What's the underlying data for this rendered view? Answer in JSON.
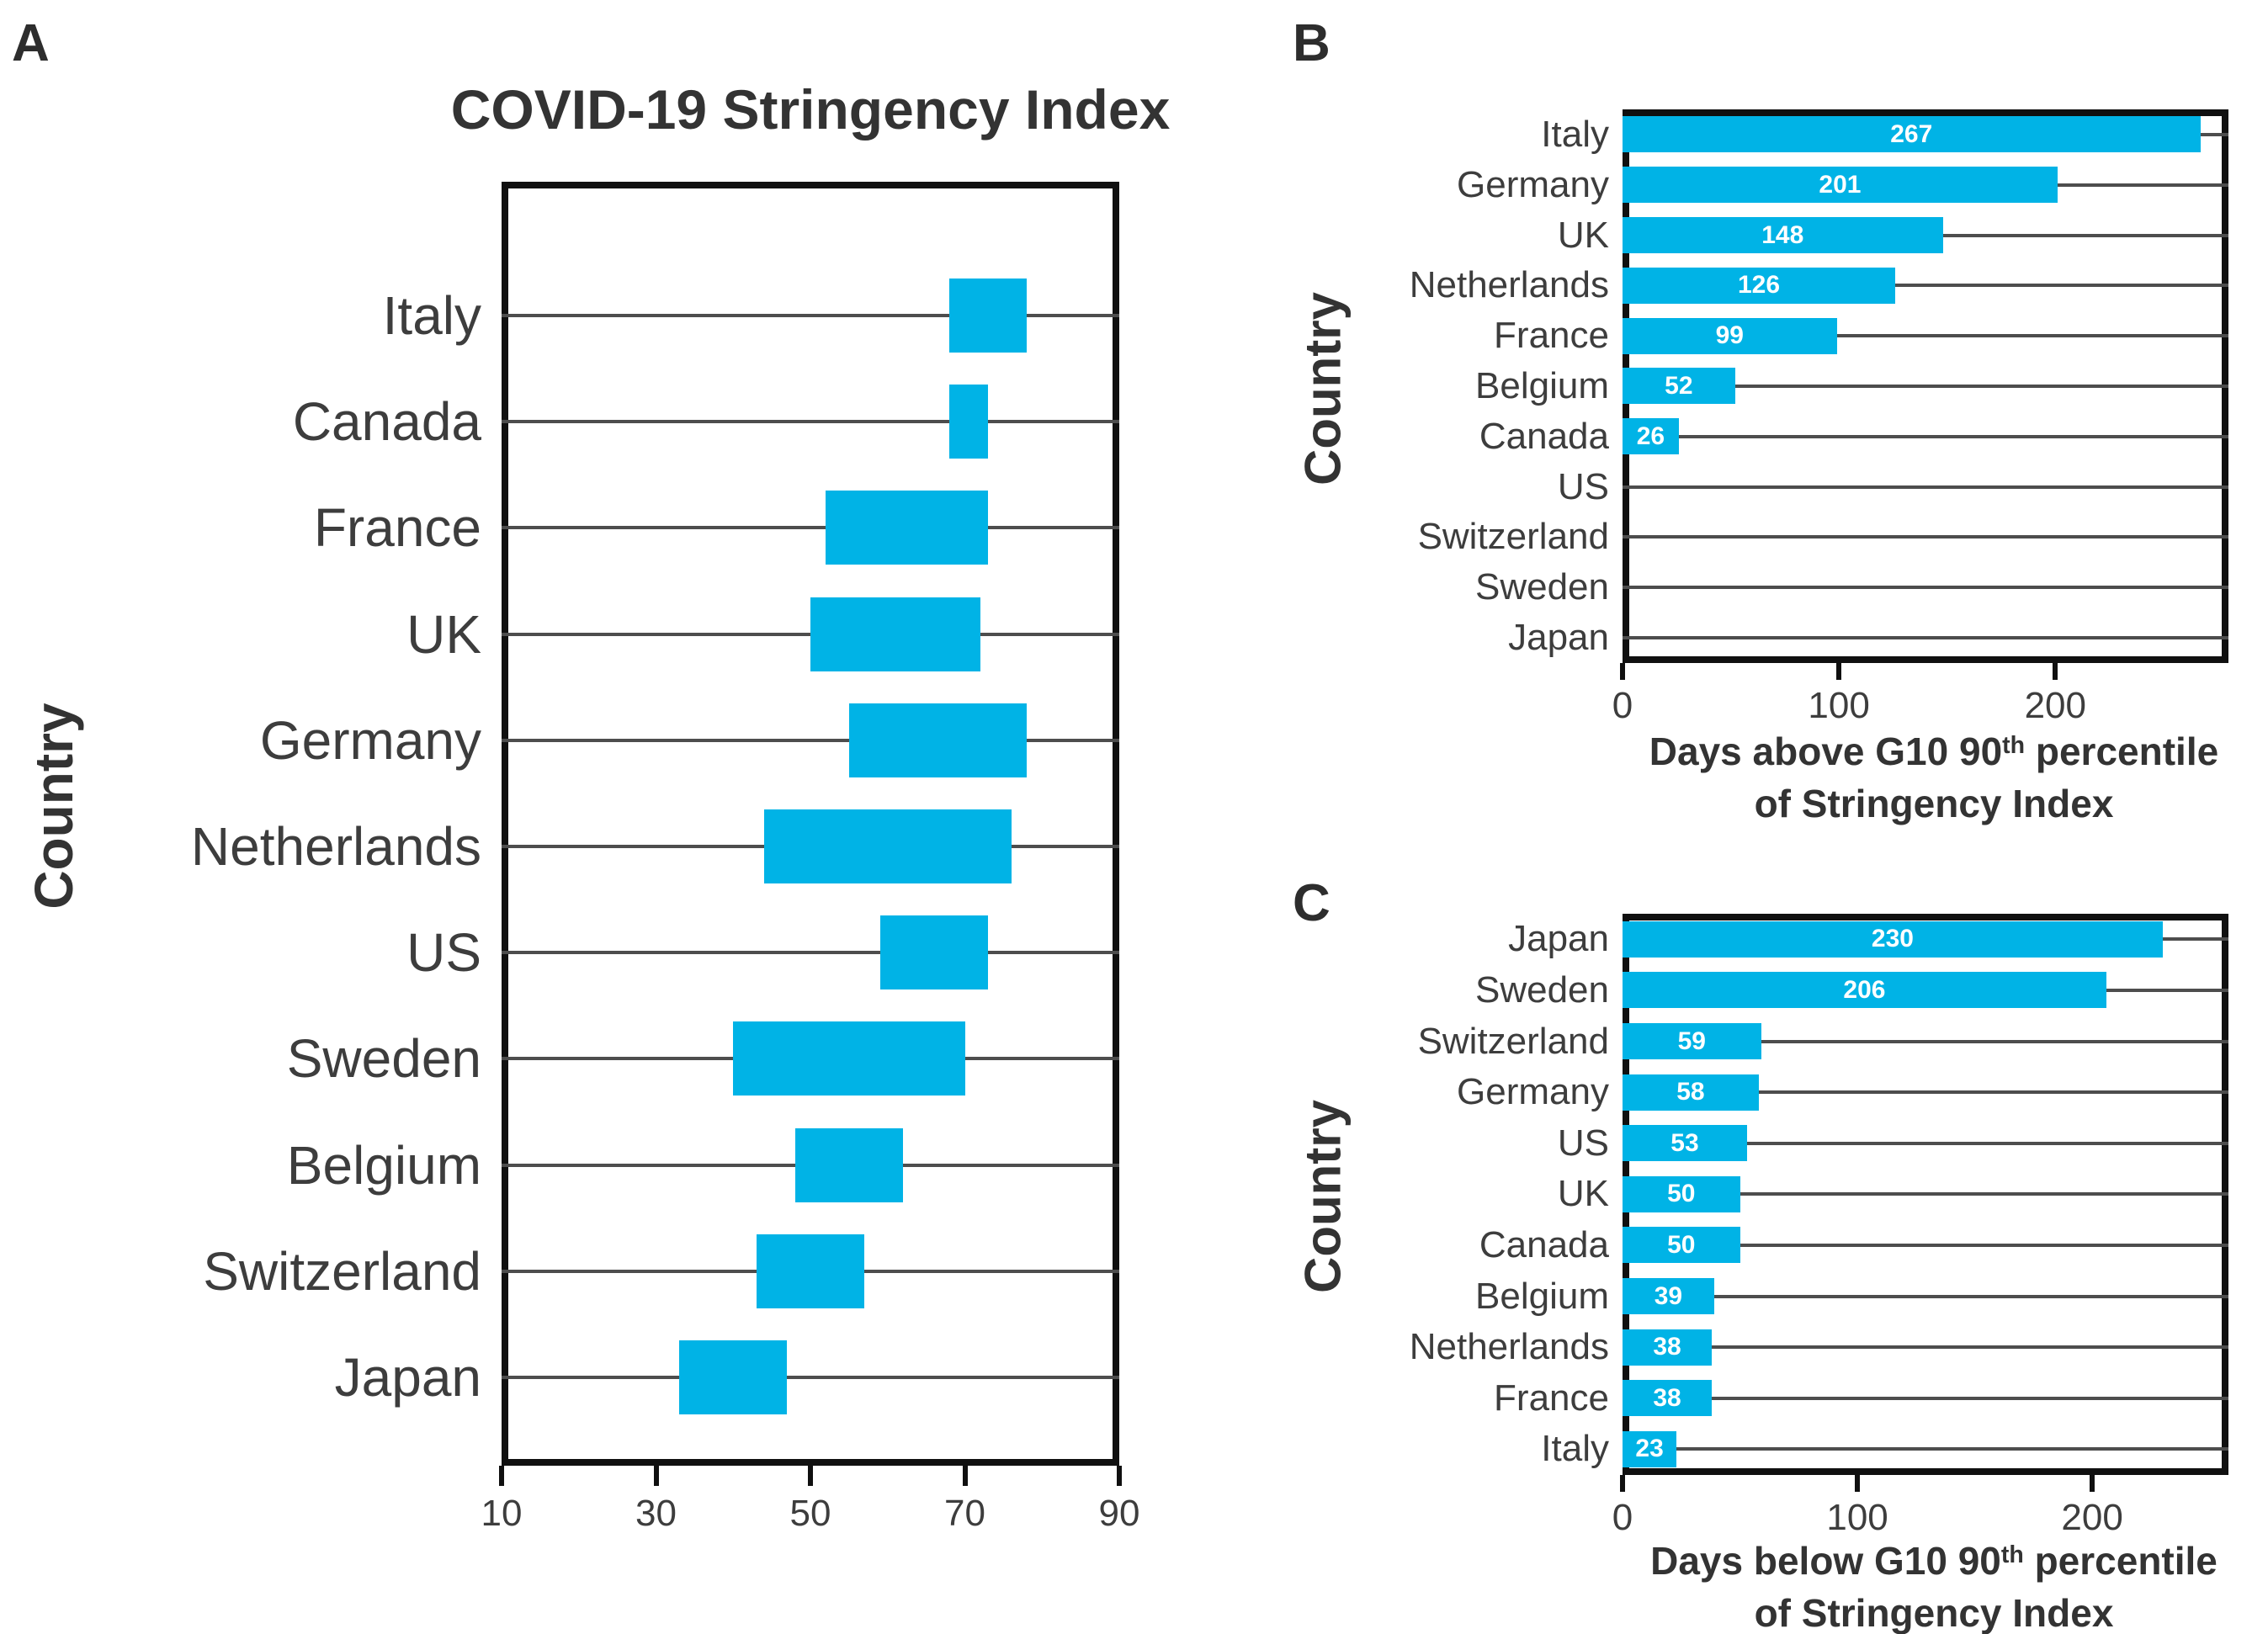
{
  "figure": {
    "panelA": {
      "letter": "A",
      "title": "COVID-19 Stringency Index",
      "ylabel": "Country"
    },
    "panelB": {
      "letter": "B",
      "ylabel": "Country",
      "xlabel": {
        "pre": "Days above G10 90",
        "sup": "th",
        "post": " percentile",
        "line2": "of Stringency Index"
      }
    },
    "panelC": {
      "letter": "C",
      "ylabel": "Country",
      "xlabel": {
        "pre": "Days below G10 90",
        "sup": "th",
        "post": " percentile",
        "line2": "of Stringency Index"
      }
    },
    "colors": {
      "bar": "#00B3E6",
      "grid": "#4d4d4d",
      "frame": "#101010",
      "text": "#3d3d3d"
    }
  },
  "chart_data": [
    {
      "id": "A",
      "type": "bar",
      "subtype": "range",
      "orientation": "horizontal",
      "title": "COVID-19 Stringency Index",
      "xlabel": "",
      "ylabel": "Country",
      "categories": [
        "Italy",
        "Canada",
        "France",
        "UK",
        "Germany",
        "Netherlands",
        "US",
        "Sweden",
        "Belgium",
        "Switzerland",
        "Japan"
      ],
      "ranges": [
        [
          68,
          78
        ],
        [
          68,
          73
        ],
        [
          52,
          73
        ],
        [
          50,
          72
        ],
        [
          55,
          78
        ],
        [
          44,
          76
        ],
        [
          59,
          73
        ],
        [
          40,
          70
        ],
        [
          48,
          62
        ],
        [
          43,
          57
        ],
        [
          33,
          47
        ]
      ],
      "xticks": [
        10,
        30,
        50,
        70,
        90
      ],
      "xlim": [
        10,
        90
      ],
      "grid": "horizontal-per-category",
      "legend": "none",
      "bar_color": "#00B3E6"
    },
    {
      "id": "B",
      "type": "bar",
      "orientation": "horizontal",
      "title": "",
      "xlabel": "Days above G10 90th percentile of Stringency Index",
      "ylabel": "Country",
      "categories": [
        "Italy",
        "Germany",
        "UK",
        "Netherlands",
        "France",
        "Belgium",
        "Canada",
        "US",
        "Switzerland",
        "Sweden",
        "Japan"
      ],
      "values": [
        267,
        201,
        148,
        126,
        99,
        52,
        26,
        0,
        0,
        0,
        0
      ],
      "value_labels": true,
      "xticks": [
        0,
        100,
        200
      ],
      "xlim": [
        0,
        280
      ],
      "grid": "horizontal-per-category",
      "legend": "none",
      "bar_color": "#00B3E6"
    },
    {
      "id": "C",
      "type": "bar",
      "orientation": "horizontal",
      "title": "",
      "xlabel": "Days below G10 90th percentile of Stringency Index",
      "ylabel": "Country",
      "categories": [
        "Japan",
        "Sweden",
        "Switzerland",
        "Germany",
        "US",
        "UK",
        "Canada",
        "Belgium",
        "Netherlands",
        "France",
        "Italy"
      ],
      "values": [
        230,
        206,
        59,
        58,
        53,
        50,
        50,
        39,
        38,
        38,
        23
      ],
      "value_labels": true,
      "xticks": [
        0,
        100,
        200
      ],
      "xlim": [
        0,
        258
      ],
      "grid": "horizontal-per-category",
      "legend": "none",
      "bar_color": "#00B3E6"
    }
  ]
}
